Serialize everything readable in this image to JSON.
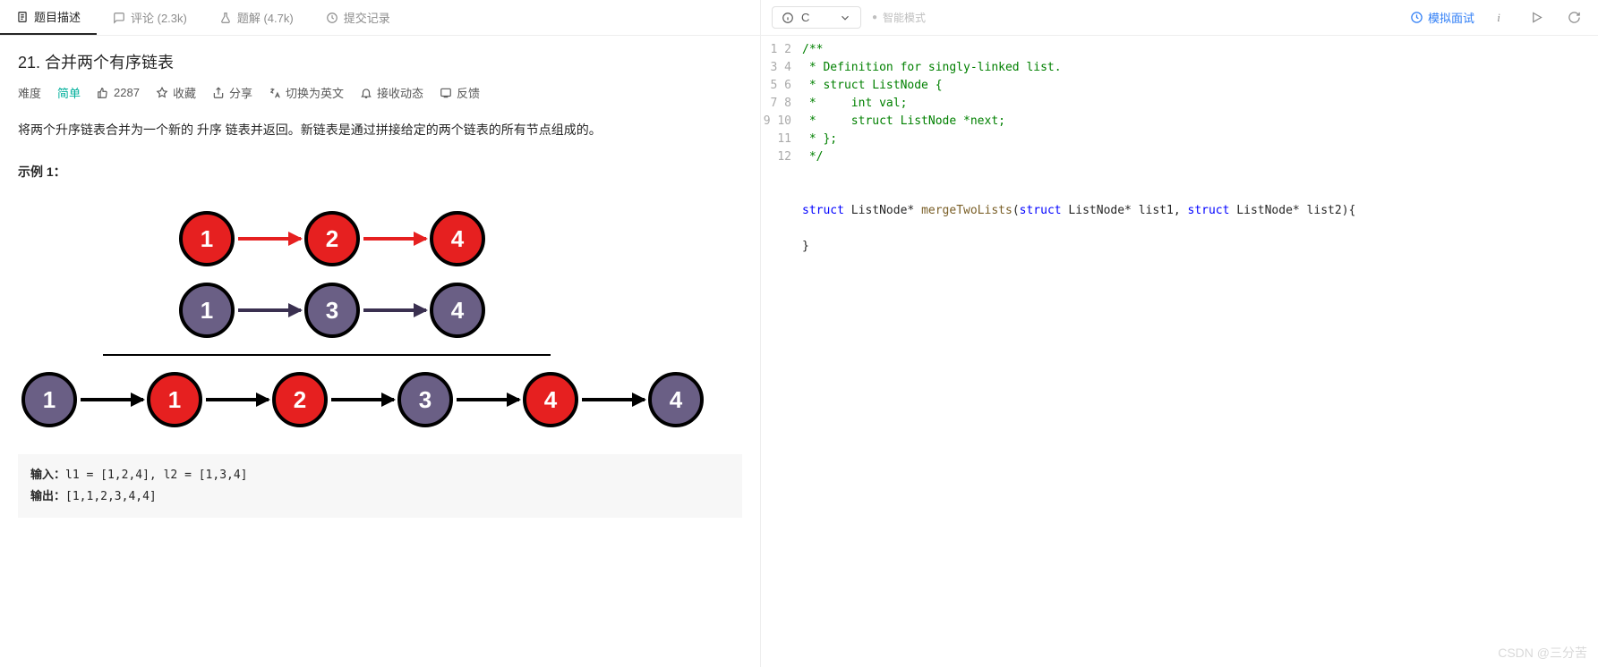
{
  "tabs": {
    "desc": "题目描述",
    "comments": "评论 (2.3k)",
    "solutions": "题解 (4.7k)",
    "submissions": "提交记录"
  },
  "problem": {
    "title": "21. 合并两个有序链表",
    "difficulty_label": "难度",
    "difficulty": "简单",
    "likes": "2287",
    "favorite": "收藏",
    "share": "分享",
    "translate": "切换为英文",
    "notify": "接收动态",
    "feedback": "反馈",
    "description": "将两个升序链表合并为一个新的 升序 链表并返回。新链表是通过拼接给定的两个链表的所有节点组成的。",
    "example_label": "示例 1：",
    "diagram": {
      "list1": {
        "values": [
          "1",
          "2",
          "4"
        ],
        "node_color": "#e62020",
        "arrow_color": "#e62020"
      },
      "list2": {
        "values": [
          "1",
          "3",
          "4"
        ],
        "node_color": "#6a5f85",
        "arrow_color": "#3a3050"
      },
      "merged": {
        "values": [
          "1",
          "1",
          "2",
          "3",
          "4",
          "4"
        ],
        "node_colors": [
          "#6a5f85",
          "#e62020",
          "#e62020",
          "#6a5f85",
          "#e62020",
          "#6a5f85"
        ],
        "arrow_color": "#000000"
      }
    },
    "input_label": "输入：",
    "input_value": "l1 = [1,2,4], l2 = [1,3,4]",
    "output_label": "输出：",
    "output_value": "[1,1,2,3,4,4]"
  },
  "editor": {
    "language": "C",
    "mode": "智能模式",
    "mock": "模拟面试",
    "line_count": 12,
    "code_comment_lines": [
      "/**",
      " * Definition for singly-linked list.",
      " * struct ListNode {",
      " *     int val;",
      " *     struct ListNode *next;",
      " * };",
      " */"
    ],
    "sig_kw1": "struct",
    "sig_t1": " ListNode* ",
    "sig_fn": "mergeTwoLists",
    "sig_p1a": "struct",
    "sig_p1b": " ListNode* list1, ",
    "sig_p2a": "struct",
    "sig_p2b": " ListNode* list2){",
    "close": "}"
  },
  "watermark": "CSDN @三分苦"
}
